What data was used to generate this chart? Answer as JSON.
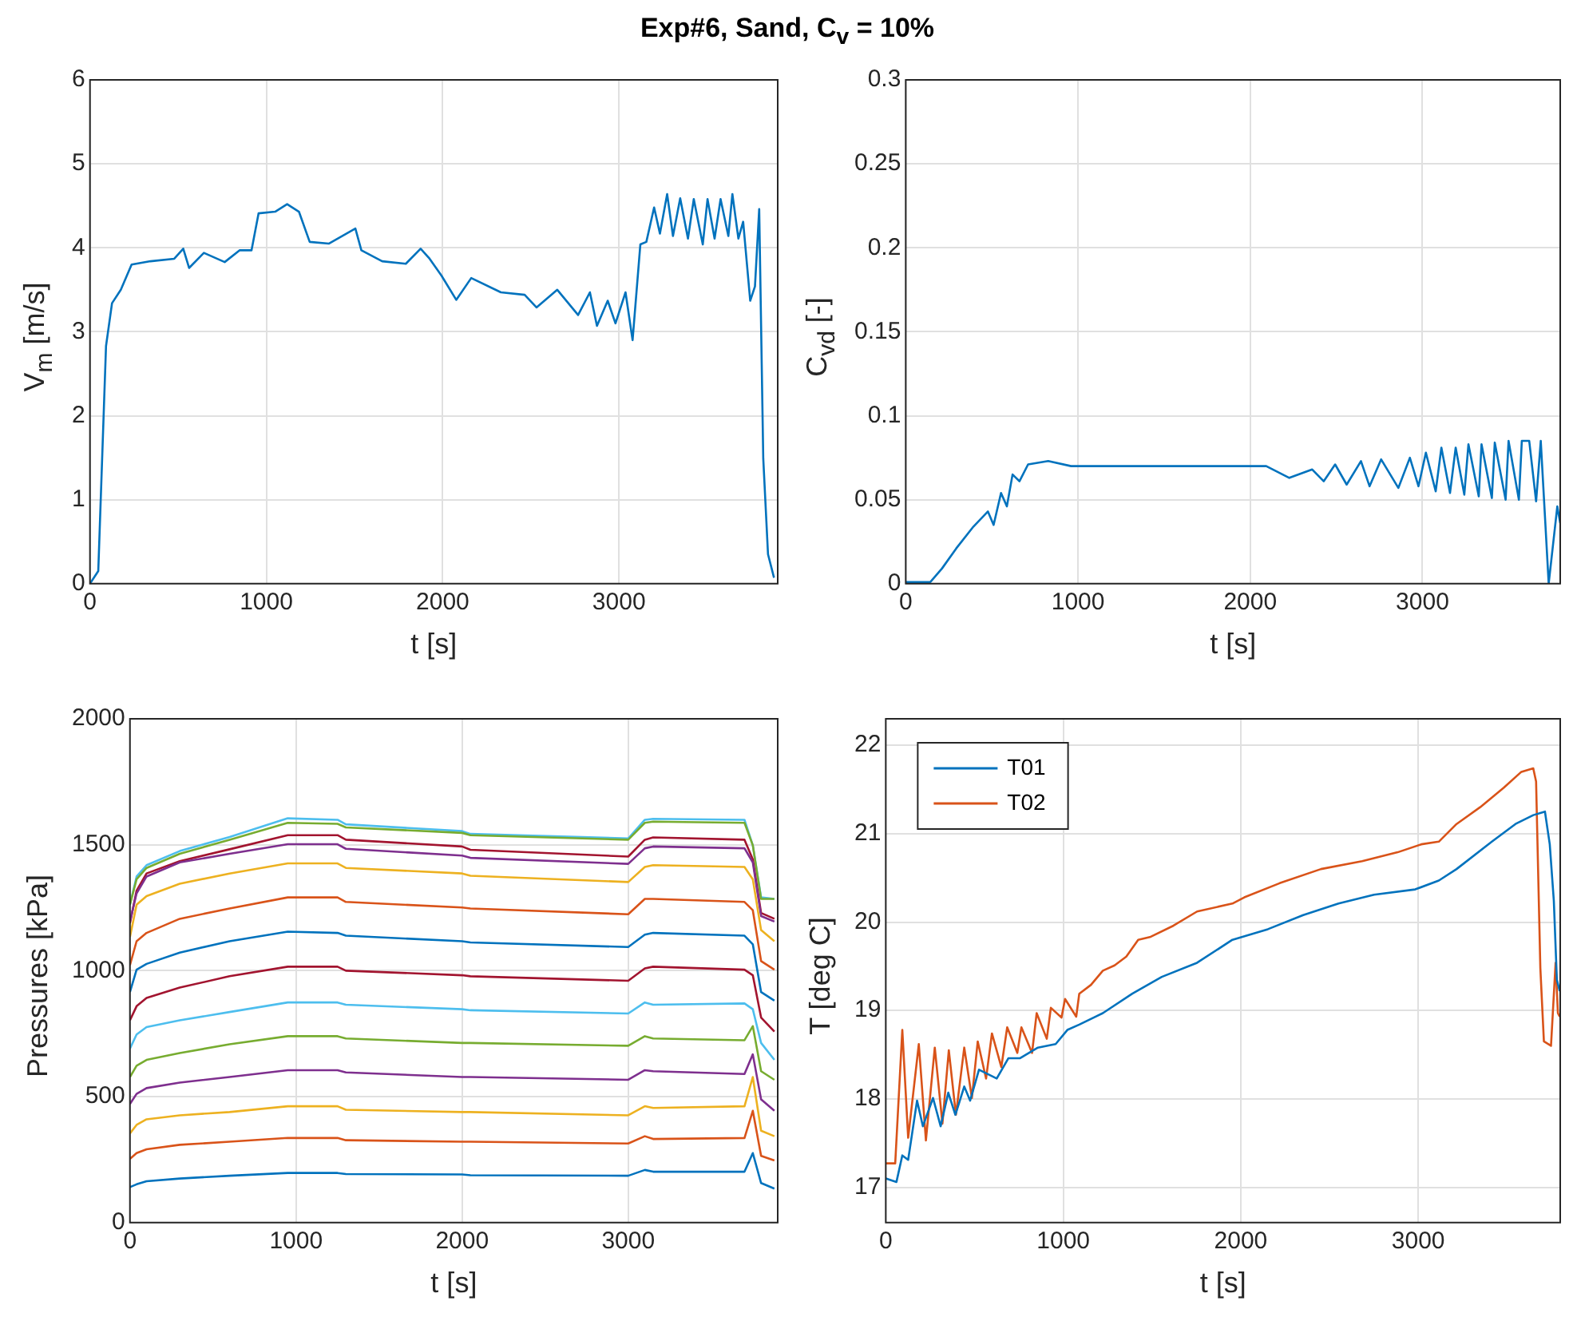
{
  "chart_data": [
    {
      "type": "line",
      "title": "Exp#6, Sand, C$_{v}$ = 10%",
      "xlabel": "t [s]",
      "ylabel": "V$_{m}$ [m/s]",
      "xlim": [
        0,
        3900
      ],
      "xticks": [
        0,
        1000,
        2000,
        3000
      ],
      "ylim": [
        0,
        6
      ],
      "yticks": [
        0,
        1,
        2,
        3,
        4,
        5,
        6
      ],
      "grid": true,
      "marker": "none",
      "line_style": "solid",
      "x": [
        0,
        47,
        91,
        125,
        175,
        236,
        343,
        478,
        529,
        562,
        646,
        764,
        848,
        916,
        956,
        1050,
        1118,
        1185,
        1246,
        1354,
        1505,
        1539,
        1657,
        1791,
        1875,
        1926,
        1993,
        2077,
        2162,
        2330,
        2465,
        2532,
        2650,
        2768,
        2835,
        2875,
        2936,
        2980,
        3037,
        3077,
        3121,
        3155,
        3199,
        3232,
        3273,
        3306,
        3347,
        3391,
        3424,
        3475,
        3502,
        3542,
        3576,
        3620,
        3643,
        3677,
        3704,
        3744,
        3771,
        3795,
        3818,
        3845,
        3879
      ],
      "series": [
        {
          "color": "#0072bd",
          "values": [
            0,
            0.15,
            2.83,
            3.34,
            3.5,
            3.8,
            3.84,
            3.87,
            3.99,
            3.76,
            3.94,
            3.83,
            3.97,
            3.97,
            4.41,
            4.43,
            4.52,
            4.43,
            4.07,
            4.05,
            4.23,
            3.97,
            3.84,
            3.81,
            3.99,
            3.87,
            3.67,
            3.38,
            3.64,
            3.47,
            3.44,
            3.29,
            3.5,
            3.2,
            3.47,
            3.07,
            3.37,
            3.1,
            3.47,
            2.9,
            4.04,
            4.07,
            4.48,
            4.17,
            4.64,
            4.14,
            4.59,
            4.11,
            4.58,
            4.04,
            4.58,
            4.11,
            4.58,
            4.14,
            4.64,
            4.11,
            4.31,
            3.37,
            3.54,
            4.46,
            1.49,
            0.35,
            0.07
          ]
        }
      ]
    },
    {
      "type": "line",
      "xlabel": "t [s]",
      "ylabel": "C$_{vd}$ [-]",
      "xlim": [
        0,
        3800
      ],
      "xticks": [
        0,
        1000,
        2000,
        3000
      ],
      "ylim": [
        0,
        0.3
      ],
      "yticks": [
        0,
        0.05,
        0.1,
        0.15,
        0.2,
        0.25,
        0.3
      ],
      "grid": true,
      "marker": "none",
      "line_style": "solid",
      "x": [
        0,
        143,
        210,
        293,
        393,
        477,
        510,
        553,
        587,
        620,
        660,
        710,
        827,
        960,
        1293,
        1627,
        1960,
        2093,
        2227,
        2360,
        2427,
        2493,
        2560,
        2643,
        2693,
        2760,
        2860,
        2927,
        2977,
        3020,
        3077,
        3110,
        3160,
        3193,
        3243,
        3267,
        3327,
        3343,
        3403,
        3420,
        3483,
        3500,
        3560,
        3577,
        3620,
        3660,
        3687,
        3733,
        3783,
        3800
      ],
      "series": [
        {
          "color": "#0072bd",
          "values": [
            0.001,
            0.001,
            0.009,
            0.021,
            0.034,
            0.043,
            0.035,
            0.054,
            0.046,
            0.065,
            0.061,
            0.071,
            0.073,
            0.07,
            0.07,
            0.07,
            0.07,
            0.07,
            0.063,
            0.068,
            0.061,
            0.071,
            0.059,
            0.073,
            0.058,
            0.074,
            0.057,
            0.075,
            0.058,
            0.078,
            0.055,
            0.081,
            0.054,
            0.081,
            0.053,
            0.083,
            0.052,
            0.083,
            0.051,
            0.084,
            0.05,
            0.085,
            0.05,
            0.085,
            0.085,
            0.049,
            0.085,
            0,
            0.046,
            0.036
          ]
        }
      ]
    },
    {
      "type": "line",
      "xlabel": "t [s]",
      "ylabel": "Pressures [kPa]",
      "xlim": [
        0,
        3900
      ],
      "xticks": [
        0,
        1000,
        2000,
        3000
      ],
      "ylim": [
        0,
        2000
      ],
      "yticks": [
        0,
        500,
        1000,
        1500,
        2000
      ],
      "grid": true,
      "marker": "none",
      "line_style": "solid",
      "x": [
        0,
        40,
        100,
        300,
        600,
        950,
        1250,
        1300,
        2000,
        2050,
        3000,
        3100,
        3150,
        3700,
        3750,
        3800,
        3880
      ],
      "series": [
        {
          "color": "#0072bd",
          "values": [
            141,
            152,
            164,
            175,
            186,
            197,
            197,
            193,
            191,
            188,
            186,
            209,
            202,
            202,
            276,
            157,
            135
          ]
        },
        {
          "color": "#d95319",
          "values": [
            253,
            276,
            291,
            309,
            321,
            336,
            336,
            327,
            321,
            321,
            314,
            343,
            332,
            336,
            444,
            265,
            247
          ]
        },
        {
          "color": "#edb120",
          "values": [
            354,
            388,
            410,
            426,
            439,
            462,
            462,
            448,
            439,
            439,
            426,
            462,
            455,
            462,
            578,
            365,
            343
          ]
        },
        {
          "color": "#7e2f8e",
          "values": [
            471,
            511,
            534,
            556,
            578,
            605,
            605,
            596,
            578,
            578,
            567,
            605,
            601,
            590,
            668,
            489,
            444
          ]
        },
        {
          "color": "#77ac30",
          "values": [
            578,
            623,
            646,
            673,
            708,
            740,
            740,
            731,
            713,
            713,
            702,
            740,
            731,
            724,
            780,
            601,
            567
          ]
        },
        {
          "color": "#4dbeee",
          "values": [
            691,
            747,
            776,
            803,
            836,
            874,
            874,
            865,
            847,
            843,
            830,
            874,
            865,
            870,
            847,
            713,
            646
          ]
        },
        {
          "color": "#a2142f",
          "values": [
            803,
            859,
            892,
            933,
            978,
            1016,
            1016,
            1000,
            982,
            978,
            960,
            1009,
            1016,
            1004,
            982,
            814,
            758
          ]
        },
        {
          "color": "#0072bd",
          "values": [
            915,
            1004,
            1027,
            1072,
            1117,
            1155,
            1150,
            1139,
            1117,
            1112,
            1094,
            1143,
            1150,
            1139,
            1105,
            915,
            881
          ]
        },
        {
          "color": "#d95319",
          "values": [
            1022,
            1117,
            1150,
            1206,
            1247,
            1291,
            1291,
            1273,
            1251,
            1247,
            1224,
            1285,
            1285,
            1273,
            1240,
            1038,
            1004
          ]
        },
        {
          "color": "#edb120",
          "values": [
            1134,
            1262,
            1296,
            1345,
            1386,
            1426,
            1426,
            1408,
            1386,
            1377,
            1352,
            1412,
            1419,
            1412,
            1363,
            1161,
            1117
          ]
        },
        {
          "color": "#7e2f8e",
          "values": [
            1195,
            1307,
            1374,
            1430,
            1464,
            1502,
            1502,
            1484,
            1457,
            1448,
            1424,
            1486,
            1493,
            1486,
            1430,
            1217,
            1195
          ]
        },
        {
          "color": "#a2142f",
          "values": [
            1188,
            1318,
            1386,
            1435,
            1482,
            1538,
            1538,
            1520,
            1493,
            1480,
            1453,
            1520,
            1529,
            1520,
            1442,
            1229,
            1206
          ]
        },
        {
          "color": "#77ac30",
          "values": [
            1262,
            1363,
            1408,
            1464,
            1520,
            1587,
            1583,
            1569,
            1547,
            1538,
            1520,
            1587,
            1592,
            1587,
            1498,
            1285,
            1285
          ]
        },
        {
          "color": "#4dbeee",
          "values": [
            1262,
            1374,
            1419,
            1475,
            1531,
            1605,
            1599,
            1581,
            1554,
            1543,
            1525,
            1599,
            1603,
            1599,
            1498,
            1291,
            1285
          ]
        }
      ]
    },
    {
      "type": "line",
      "xlabel": "t [s]",
      "ylabel": "T [deg C]",
      "xlim": [
        0,
        3800
      ],
      "xticks": [
        0,
        1000,
        2000,
        3000
      ],
      "ylim": [
        16.6,
        22.3
      ],
      "yticks": [
        17,
        18,
        19,
        20,
        21,
        22
      ],
      "grid": true,
      "marker": "none",
      "line_style": "solid",
      "legend": "top left",
      "series": [
        {
          "name": "T01",
          "color": "#0072bd",
          "x": [
            0,
            60,
            93,
            126,
            176,
            209,
            266,
            309,
            352,
            392,
            442,
            475,
            525,
            625,
            691,
            757,
            857,
            957,
            1023,
            1090,
            1223,
            1389,
            1555,
            1754,
            1953,
            2153,
            2352,
            2551,
            2751,
            2983,
            3116,
            3216,
            3415,
            3548,
            3648,
            3714,
            3741,
            3764,
            3781,
            3797
          ],
          "values": [
            17.1,
            17.06,
            17.36,
            17.31,
            17.98,
            17.69,
            18.01,
            17.69,
            18.07,
            17.82,
            18.14,
            17.98,
            18.33,
            18.23,
            18.46,
            18.46,
            18.58,
            18.62,
            18.78,
            18.84,
            18.97,
            19.19,
            19.38,
            19.54,
            19.8,
            19.92,
            20.08,
            20.21,
            20.31,
            20.37,
            20.47,
            20.6,
            20.91,
            21.11,
            21.21,
            21.25,
            20.88,
            20.24,
            19.35,
            19.22
          ]
        },
        {
          "name": "T02",
          "color": "#d95319",
          "x": [
            0,
            53,
            93,
            126,
            186,
            226,
            276,
            319,
            355,
            395,
            442,
            485,
            518,
            565,
            598,
            651,
            684,
            741,
            764,
            824,
            850,
            907,
            930,
            990,
            1010,
            1073,
            1090,
            1156,
            1223,
            1289,
            1355,
            1422,
            1488,
            1621,
            1754,
            1953,
            2020,
            2219,
            2452,
            2684,
            2884,
            3017,
            3116,
            3216,
            3349,
            3482,
            3581,
            3648,
            3664,
            3688,
            3708,
            3748,
            3774,
            3787,
            3797
          ],
          "values": [
            17.27,
            17.27,
            18.78,
            17.56,
            18.62,
            17.53,
            18.58,
            17.72,
            18.55,
            17.82,
            18.58,
            18.01,
            18.65,
            18.23,
            18.74,
            18.36,
            18.81,
            18.52,
            18.81,
            18.52,
            18.97,
            18.68,
            19.03,
            18.92,
            19.13,
            18.93,
            19.19,
            19.29,
            19.45,
            19.51,
            19.61,
            19.8,
            19.83,
            19.96,
            20.12,
            20.21,
            20.28,
            20.44,
            20.6,
            20.69,
            20.79,
            20.88,
            20.91,
            21.11,
            21.3,
            21.52,
            21.7,
            21.74,
            21.59,
            19.48,
            18.65,
            18.6,
            19.54,
            18.97,
            18.93
          ]
        }
      ]
    }
  ]
}
